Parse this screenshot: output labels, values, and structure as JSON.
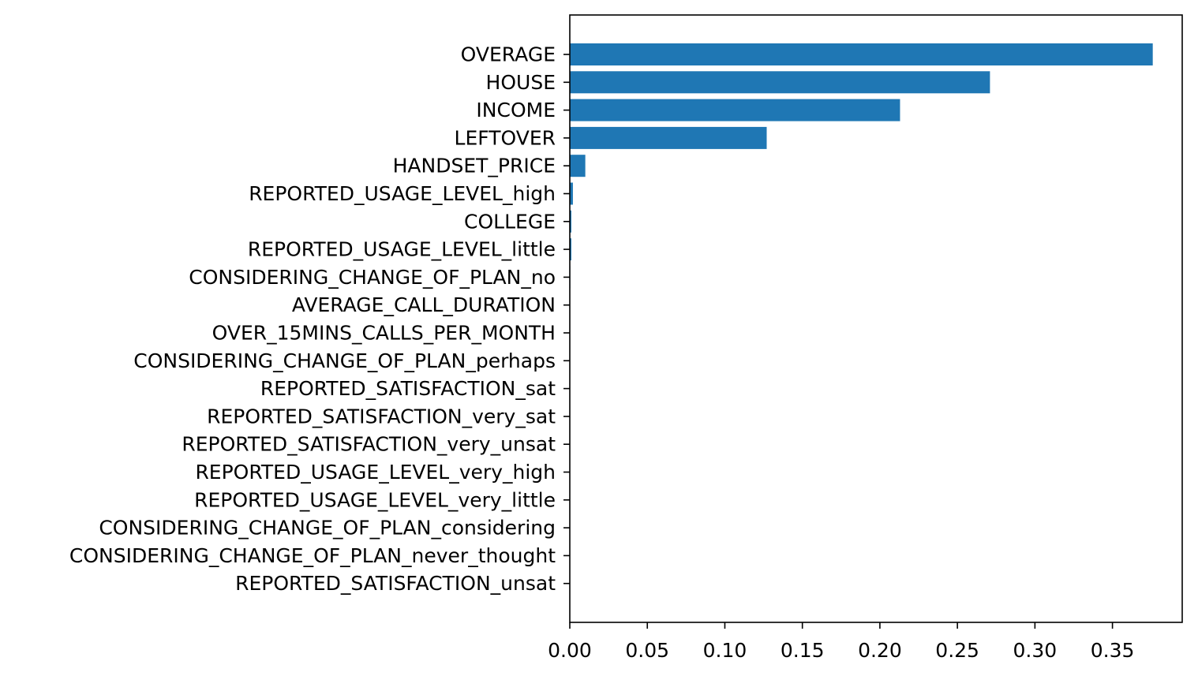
{
  "chart_data": {
    "type": "bar",
    "orientation": "horizontal",
    "title": "",
    "xlabel": "",
    "ylabel": "",
    "categories": [
      "OVERAGE",
      "HOUSE",
      "INCOME",
      "LEFTOVER",
      "HANDSET_PRICE",
      "REPORTED_USAGE_LEVEL_high",
      "COLLEGE",
      "REPORTED_USAGE_LEVEL_little",
      "CONSIDERING_CHANGE_OF_PLAN_no",
      "AVERAGE_CALL_DURATION",
      "OVER_15MINS_CALLS_PER_MONTH",
      "CONSIDERING_CHANGE_OF_PLAN_perhaps",
      "REPORTED_SATISFACTION_sat",
      "REPORTED_SATISFACTION_very_sat",
      "REPORTED_SATISFACTION_very_unsat",
      "REPORTED_USAGE_LEVEL_very_high",
      "REPORTED_USAGE_LEVEL_very_little",
      "CONSIDERING_CHANGE_OF_PLAN_considering",
      "CONSIDERING_CHANGE_OF_PLAN_never_thought",
      "REPORTED_SATISFACTION_unsat"
    ],
    "values": [
      0.376,
      0.271,
      0.213,
      0.127,
      0.01,
      0.002,
      0.001,
      0.001,
      0.0003,
      0.0002,
      0.0002,
      0.0001,
      0,
      0,
      0,
      0,
      0,
      0,
      0,
      0
    ],
    "xlim": [
      0,
      0.395
    ],
    "xticks": [
      "0.00",
      "0.05",
      "0.10",
      "0.15",
      "0.20",
      "0.25",
      "0.30",
      "0.35"
    ],
    "bar_color": "#1f77b4",
    "grid": false,
    "legend": "none"
  }
}
